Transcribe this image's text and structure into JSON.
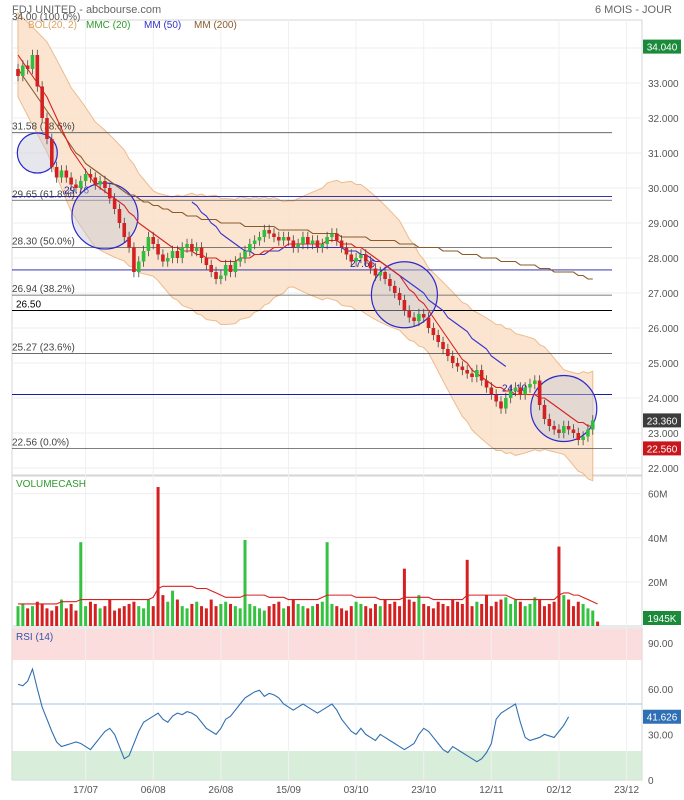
{
  "header": {
    "title": "FDJ UNITED - abcbourse.com",
    "period": "6 MOIS - JOUR"
  },
  "chart_data": [
    {
      "type": "candlestick",
      "legend": [
        "BOL(20, 2)",
        "MMC (20)",
        "MM (50)",
        "MM (200)"
      ],
      "y_ticks": [
        "34.000",
        "33.000",
        "32.000",
        "31.000",
        "30.000",
        "29.000",
        "28.000",
        "27.000",
        "26.000",
        "25.000",
        "24.000",
        "23.000",
        "22.000"
      ],
      "ylim": [
        21.4,
        34.8
      ],
      "x_ticks": [
        {
          "label": "17/07",
          "i": 14
        },
        {
          "label": "06/08",
          "i": 28
        },
        {
          "label": "26/08",
          "i": 42
        },
        {
          "label": "15/09",
          "i": 56
        },
        {
          "label": "03/10",
          "i": 70
        },
        {
          "label": "23/10",
          "i": 84
        },
        {
          "label": "12/11",
          "i": 98
        },
        {
          "label": "02/12",
          "i": 112
        },
        {
          "label": "23/12",
          "i": 126
        }
      ],
      "fib_levels": [
        {
          "label": "31.58 (78.6%)",
          "value": 31.58
        },
        {
          "label": "29.65 (61.8%)",
          "value": 29.65
        },
        {
          "label": "28.30 (50.0%)",
          "value": 28.3
        },
        {
          "label": "26.94 (38.2%)",
          "value": 26.94
        },
        {
          "label": "25.27 (23.6%)",
          "value": 25.27
        },
        {
          "label": "22.56 (0.0%)",
          "value": 22.56
        }
      ],
      "support_lines": [
        {
          "label": "26.50",
          "value": 26.5
        },
        {
          "label": "29.76",
          "value": 29.76
        },
        {
          "label": "27.66",
          "value": 27.66
        },
        {
          "label": "24.10",
          "value": 24.1
        }
      ],
      "top_label": "34.00 (100.0%)",
      "price_badges": [
        {
          "label": "34.040",
          "value": 34.04,
          "color": "#1b8a3a"
        },
        {
          "label": "23.360",
          "value": 23.36,
          "color": "#3c3c3c"
        },
        {
          "label": "22.560",
          "value": 22.56,
          "color": "#c8161d"
        }
      ],
      "highlight_circles": [
        {
          "i": 4,
          "value": 31.0
        },
        {
          "i": 18,
          "value": 29.2
        },
        {
          "i": 80,
          "value": 26.95
        },
        {
          "i": 113,
          "value": 23.7
        }
      ],
      "closes": [
        33.2,
        33.5,
        33.4,
        33.8,
        32.9,
        32.0,
        31.4,
        30.6,
        30.3,
        30.5,
        30.3,
        30.1,
        30.0,
        30.2,
        30.4,
        30.3,
        30.1,
        30.2,
        30.0,
        29.7,
        29.4,
        29.0,
        28.6,
        28.3,
        27.6,
        27.9,
        28.2,
        28.6,
        28.4,
        28.1,
        27.9,
        28.0,
        28.2,
        28.0,
        28.3,
        28.4,
        28.2,
        28.3,
        28.0,
        27.8,
        27.6,
        27.4,
        27.5,
        27.8,
        27.6,
        27.9,
        28.0,
        28.2,
        28.4,
        28.5,
        28.6,
        28.8,
        28.7,
        28.6,
        28.5,
        28.6,
        28.5,
        28.3,
        28.4,
        28.6,
        28.4,
        28.5,
        28.3,
        28.4,
        28.6,
        28.7,
        28.5,
        28.3,
        28.1,
        27.9,
        28.0,
        28.1,
        27.9,
        27.7,
        27.5,
        27.6,
        27.4,
        27.2,
        27.0,
        26.8,
        26.5,
        26.3,
        26.2,
        26.4,
        26.3,
        26.0,
        25.8,
        25.6,
        25.4,
        25.2,
        25.0,
        24.9,
        24.8,
        24.7,
        24.6,
        24.8,
        24.5,
        24.3,
        24.1,
        23.9,
        23.7,
        24.0,
        24.2,
        24.3,
        24.1,
        24.3,
        24.4,
        24.5,
        23.8,
        23.4,
        23.2,
        23.1,
        23.0,
        23.2,
        23.1,
        23.0,
        22.8,
        22.9,
        23.1,
        23.36
      ],
      "sma20": [
        33.8,
        33.6,
        33.4,
        33.2,
        33.0,
        32.8,
        32.6,
        32.3,
        32.0,
        31.7,
        31.4,
        31.1,
        30.9,
        30.7,
        30.5,
        30.3,
        30.1,
        30.0,
        29.9,
        29.8,
        29.7,
        29.6,
        29.5,
        29.3,
        29.2,
        29.0,
        28.9,
        28.8,
        28.7,
        28.6,
        28.5,
        28.4,
        28.3,
        28.3,
        28.2,
        28.2,
        28.2,
        28.1,
        28.1,
        28.0,
        28.0,
        28.0,
        27.9,
        27.9,
        27.9,
        27.9,
        28.0,
        28.0,
        28.0,
        28.1,
        28.1,
        28.2,
        28.2,
        28.3,
        28.3,
        28.3,
        28.4,
        28.4,
        28.4,
        28.4,
        28.4,
        28.4,
        28.4,
        28.4,
        28.5,
        28.5,
        28.5,
        28.4,
        28.4,
        28.4,
        28.3,
        28.3,
        28.2,
        28.1,
        28.0,
        27.9,
        27.8,
        27.7,
        27.6,
        27.5,
        27.3,
        27.1,
        27.0,
        26.8,
        26.7,
        26.5,
        26.3,
        26.1,
        25.9,
        25.7,
        25.5,
        25.3,
        25.1,
        25.0,
        24.8,
        24.7,
        24.6,
        24.5,
        24.4,
        24.3,
        24.3,
        24.2,
        24.2,
        24.1,
        24.1,
        24.1,
        24.1,
        24.1,
        24.0,
        24.0,
        23.9,
        23.8,
        23.7,
        23.6,
        23.5,
        23.4,
        23.3,
        23.3,
        23.2,
        23.2
      ],
      "sma50": [
        null,
        null,
        null,
        null,
        null,
        null,
        null,
        null,
        null,
        null,
        null,
        null,
        null,
        null,
        null,
        null,
        null,
        null,
        null,
        null,
        null,
        null,
        null,
        null,
        null,
        null,
        null,
        null,
        null,
        null,
        null,
        null,
        null,
        null,
        null,
        null,
        29.6,
        29.5,
        29.3,
        29.2,
        29.0,
        28.9,
        28.7,
        28.6,
        28.5,
        28.4,
        28.3,
        28.2,
        28.2,
        28.1,
        28.1,
        28.1,
        28.2,
        28.2,
        28.2,
        28.3,
        28.3,
        28.3,
        28.3,
        28.3,
        28.3,
        28.3,
        28.3,
        28.3,
        28.3,
        28.3,
        28.3,
        28.3,
        28.2,
        28.2,
        28.2,
        28.1,
        28.1,
        28.0,
        27.9,
        27.9,
        27.8,
        27.7,
        27.6,
        27.5,
        27.4,
        27.3,
        27.2,
        27.1,
        27.0,
        26.8,
        26.7,
        26.6,
        26.5,
        26.3,
        26.2,
        26.1,
        26.0,
        25.9,
        25.7,
        25.6,
        25.5,
        25.4,
        25.2,
        25.1,
        25.0,
        24.9
      ],
      "sma200": [
        33.4,
        33.2,
        33.0,
        32.8,
        32.6,
        32.4,
        32.2,
        32.0,
        31.8,
        31.6,
        31.4,
        31.2,
        31.0,
        30.9,
        30.7,
        30.6,
        30.5,
        30.4,
        30.3,
        30.2,
        30.1,
        30.0,
        29.9,
        29.8,
        29.8,
        29.7,
        29.6,
        29.6,
        29.5,
        29.5,
        29.4,
        29.4,
        29.3,
        29.3,
        29.3,
        29.2,
        29.2,
        29.2,
        29.1,
        29.1,
        29.1,
        29.1,
        29.0,
        29.0,
        29.0,
        29.0,
        29.0,
        28.9,
        28.9,
        28.9,
        28.9,
        28.9,
        28.9,
        28.9,
        28.8,
        28.8,
        28.8,
        28.8,
        28.8,
        28.8,
        28.8,
        28.7,
        28.7,
        28.7,
        28.7,
        28.7,
        28.7,
        28.6,
        28.6,
        28.6,
        28.6,
        28.6,
        28.6,
        28.5,
        28.5,
        28.5,
        28.5,
        28.5,
        28.5,
        28.4,
        28.4,
        28.4,
        28.4,
        28.3,
        28.3,
        28.3,
        28.3,
        28.3,
        28.2,
        28.2,
        28.2,
        28.2,
        28.1,
        28.1,
        28.1,
        28.1,
        28.0,
        28.0,
        28.0,
        28.0,
        27.9,
        27.9,
        27.9,
        27.9,
        27.8,
        27.8,
        27.8,
        27.8,
        27.7,
        27.7,
        27.7,
        27.6,
        27.6,
        27.6,
        27.6,
        27.6,
        27.5,
        27.5,
        27.4,
        27.4
      ]
    },
    {
      "type": "bar",
      "title": "VOLUMECASH",
      "y_ticks": [
        "60M",
        "40M",
        "20M"
      ],
      "ylim": [
        0,
        68
      ],
      "badge": "1945K",
      "volumes": [
        9,
        10,
        8,
        9,
        11,
        10,
        8,
        7,
        9,
        12,
        8,
        10,
        7,
        38,
        9,
        11,
        10,
        8,
        9,
        12,
        7,
        8,
        9,
        10,
        11,
        9,
        8,
        12,
        9,
        63,
        14,
        11,
        16,
        12,
        9,
        8,
        10,
        11,
        9,
        8,
        12,
        9,
        10,
        11,
        10,
        9,
        8,
        39,
        10,
        9,
        8,
        7,
        9,
        10,
        11,
        8,
        9,
        12,
        10,
        9,
        8,
        9,
        10,
        11,
        38,
        10,
        9,
        8,
        7,
        9,
        11,
        10,
        9,
        8,
        10,
        9,
        12,
        10,
        11,
        9,
        26,
        12,
        11,
        14,
        10,
        9,
        8,
        11,
        10,
        9,
        12,
        11,
        10,
        30,
        9,
        11,
        10,
        14,
        9,
        11,
        12,
        13,
        10,
        12,
        11,
        9,
        10,
        13,
        12,
        9,
        10,
        11,
        36,
        14,
        12,
        9,
        11,
        10,
        8,
        7,
        2
      ],
      "volume_ma": [
        10,
        10,
        10,
        10,
        10,
        10,
        10,
        10,
        10,
        11,
        11,
        11,
        11,
        12,
        12,
        12,
        12,
        12,
        12,
        12,
        12,
        12,
        12,
        12,
        12,
        12,
        12,
        12,
        13,
        17,
        18,
        18,
        18,
        18,
        18,
        18,
        18,
        17,
        17,
        17,
        16,
        15,
        14,
        13,
        13,
        13,
        13,
        14,
        14,
        14,
        14,
        14,
        13,
        13,
        13,
        13,
        12,
        12,
        12,
        12,
        12,
        12,
        12,
        13,
        14,
        14,
        14,
        14,
        14,
        14,
        13,
        13,
        13,
        13,
        13,
        12,
        12,
        12,
        12,
        12,
        13,
        13,
        13,
        13,
        13,
        13,
        12,
        12,
        12,
        12,
        12,
        12,
        12,
        14,
        14,
        14,
        14,
        14,
        14,
        14,
        14,
        14,
        13,
        12,
        12,
        12,
        12,
        12,
        12,
        12,
        12,
        12,
        14,
        15,
        15,
        14,
        14,
        13,
        12,
        11,
        10
      ]
    },
    {
      "type": "line",
      "title": "RSI (14)",
      "y_ticks": [
        "90.00",
        "60.00",
        "30.00",
        "0"
      ],
      "ylim": [
        0,
        100
      ],
      "badge": "41.626",
      "rsi": [
        63,
        62,
        65,
        73,
        60,
        48,
        40,
        32,
        25,
        22,
        23,
        24,
        25,
        24,
        22,
        20,
        24,
        28,
        32,
        34,
        30,
        22,
        14,
        16,
        24,
        32,
        38,
        40,
        42,
        44,
        40,
        38,
        42,
        44,
        43,
        45,
        44,
        42,
        38,
        34,
        32,
        30,
        34,
        40,
        42,
        46,
        50,
        54,
        56,
        58,
        59,
        55,
        57,
        56,
        54,
        50,
        48,
        46,
        48,
        50,
        48,
        46,
        44,
        46,
        48,
        50,
        46,
        40,
        36,
        32,
        30,
        34,
        30,
        28,
        26,
        30,
        28,
        26,
        24,
        22,
        20,
        22,
        24,
        30,
        34,
        32,
        28,
        24,
        20,
        18,
        22,
        20,
        18,
        16,
        14,
        12,
        14,
        18,
        24,
        40,
        44,
        46,
        48,
        50,
        38,
        28,
        26,
        27,
        28,
        30,
        29,
        28,
        32,
        36,
        41.626
      ]
    }
  ]
}
